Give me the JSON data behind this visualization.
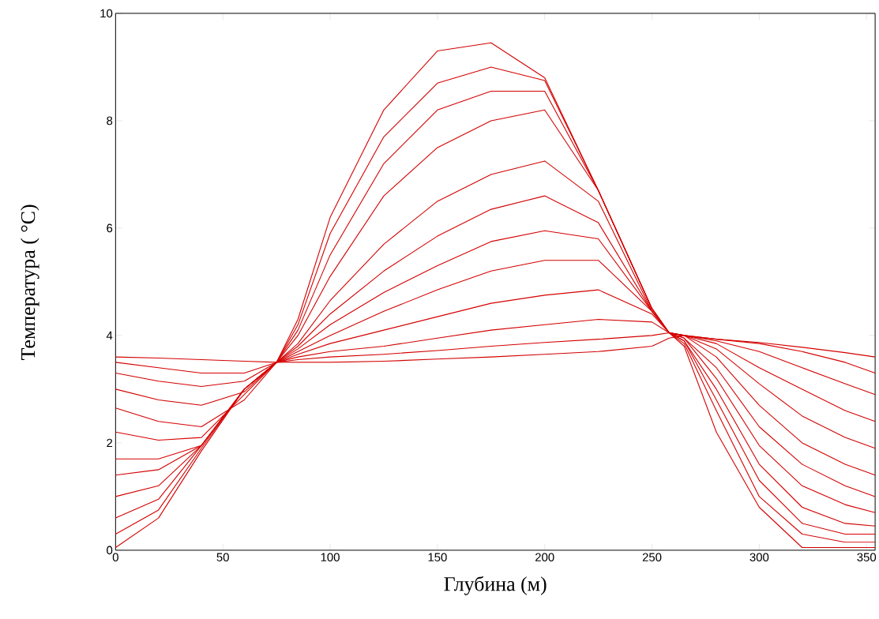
{
  "chart_data": {
    "type": "line",
    "xlabel": "Глубина (м)",
    "ylabel": "Температура ( °C)",
    "x": [
      0,
      20,
      40,
      60,
      75,
      85,
      100,
      125,
      150,
      175,
      200,
      225,
      250,
      258,
      265,
      280,
      300,
      320,
      340,
      354
    ],
    "xlim": [
      0,
      354
    ],
    "ylim": [
      0,
      10
    ],
    "xticks": [
      0,
      50,
      100,
      150,
      200,
      250,
      300,
      350
    ],
    "yticks": [
      0,
      2,
      4,
      6,
      8,
      10
    ],
    "series": [
      {
        "color": "#d40000",
        "values": [
          3.6,
          3.58,
          3.55,
          3.52,
          3.5,
          3.5,
          3.5,
          3.52,
          3.56,
          3.6,
          3.65,
          3.7,
          3.8,
          3.95,
          4.0,
          3.93,
          3.87,
          3.78,
          3.68,
          3.6
        ]
      },
      {
        "color": "#d40000",
        "values": [
          3.5,
          3.4,
          3.3,
          3.3,
          3.5,
          3.55,
          3.6,
          3.65,
          3.72,
          3.8,
          3.87,
          3.93,
          4.0,
          4.05,
          4.0,
          3.93,
          3.85,
          3.7,
          3.5,
          3.3
        ]
      },
      {
        "color": "#d40000",
        "values": [
          3.3,
          3.15,
          3.05,
          3.15,
          3.5,
          3.6,
          3.7,
          3.8,
          3.95,
          4.1,
          4.2,
          4.3,
          4.25,
          4.05,
          4.0,
          3.9,
          3.7,
          3.4,
          3.1,
          2.9
        ]
      },
      {
        "color": "#d40000",
        "values": [
          3.0,
          2.8,
          2.7,
          2.95,
          3.5,
          3.65,
          3.85,
          4.1,
          4.35,
          4.6,
          4.75,
          4.85,
          4.4,
          4.05,
          4.0,
          3.85,
          3.4,
          3.0,
          2.6,
          2.4
        ]
      },
      {
        "color": "#d40000",
        "values": [
          2.65,
          2.4,
          2.3,
          2.8,
          3.5,
          3.7,
          4.0,
          4.45,
          4.85,
          5.2,
          5.4,
          5.4,
          4.45,
          4.05,
          4.0,
          3.75,
          3.1,
          2.5,
          2.1,
          1.9
        ]
      },
      {
        "color": "#d40000",
        "values": [
          2.2,
          2.05,
          2.1,
          2.9,
          3.5,
          3.75,
          4.2,
          4.8,
          5.3,
          5.75,
          5.95,
          5.8,
          4.45,
          4.05,
          4.0,
          3.6,
          2.7,
          2.0,
          1.6,
          1.4
        ]
      },
      {
        "color": "#d40000",
        "values": [
          1.7,
          1.7,
          1.95,
          3.0,
          3.5,
          3.8,
          4.4,
          5.2,
          5.85,
          6.35,
          6.6,
          6.1,
          4.45,
          4.05,
          3.95,
          3.4,
          2.3,
          1.6,
          1.2,
          1.0
        ]
      },
      {
        "color": "#d40000",
        "values": [
          1.4,
          1.5,
          1.95,
          3.0,
          3.5,
          3.85,
          4.65,
          5.7,
          6.5,
          7.0,
          7.25,
          6.5,
          4.45,
          4.05,
          3.95,
          3.2,
          1.95,
          1.2,
          0.85,
          0.7
        ]
      },
      {
        "color": "#d40000",
        "values": [
          1.0,
          1.2,
          1.95,
          3.0,
          3.5,
          4.0,
          5.1,
          6.6,
          7.5,
          8.0,
          8.2,
          6.7,
          4.5,
          4.05,
          3.9,
          3.0,
          1.6,
          0.8,
          0.5,
          0.45
        ]
      },
      {
        "color": "#d40000",
        "values": [
          0.6,
          0.95,
          1.95,
          3.0,
          3.5,
          4.1,
          5.5,
          7.2,
          8.2,
          8.55,
          8.55,
          6.7,
          4.5,
          4.05,
          3.9,
          2.8,
          1.3,
          0.5,
          0.3,
          0.3
        ]
      },
      {
        "color": "#d40000",
        "values": [
          0.3,
          0.75,
          1.9,
          3.0,
          3.5,
          4.2,
          5.9,
          7.7,
          8.7,
          9.0,
          8.75,
          6.7,
          4.5,
          4.05,
          3.85,
          2.6,
          1.0,
          0.3,
          0.15,
          0.15
        ]
      },
      {
        "color": "#d40000",
        "values": [
          0.05,
          0.6,
          1.85,
          3.0,
          3.5,
          4.3,
          6.2,
          8.2,
          9.3,
          9.45,
          8.8,
          6.7,
          4.5,
          4.05,
          3.8,
          2.2,
          0.8,
          0.05,
          0.05,
          0.05
        ]
      }
    ]
  }
}
